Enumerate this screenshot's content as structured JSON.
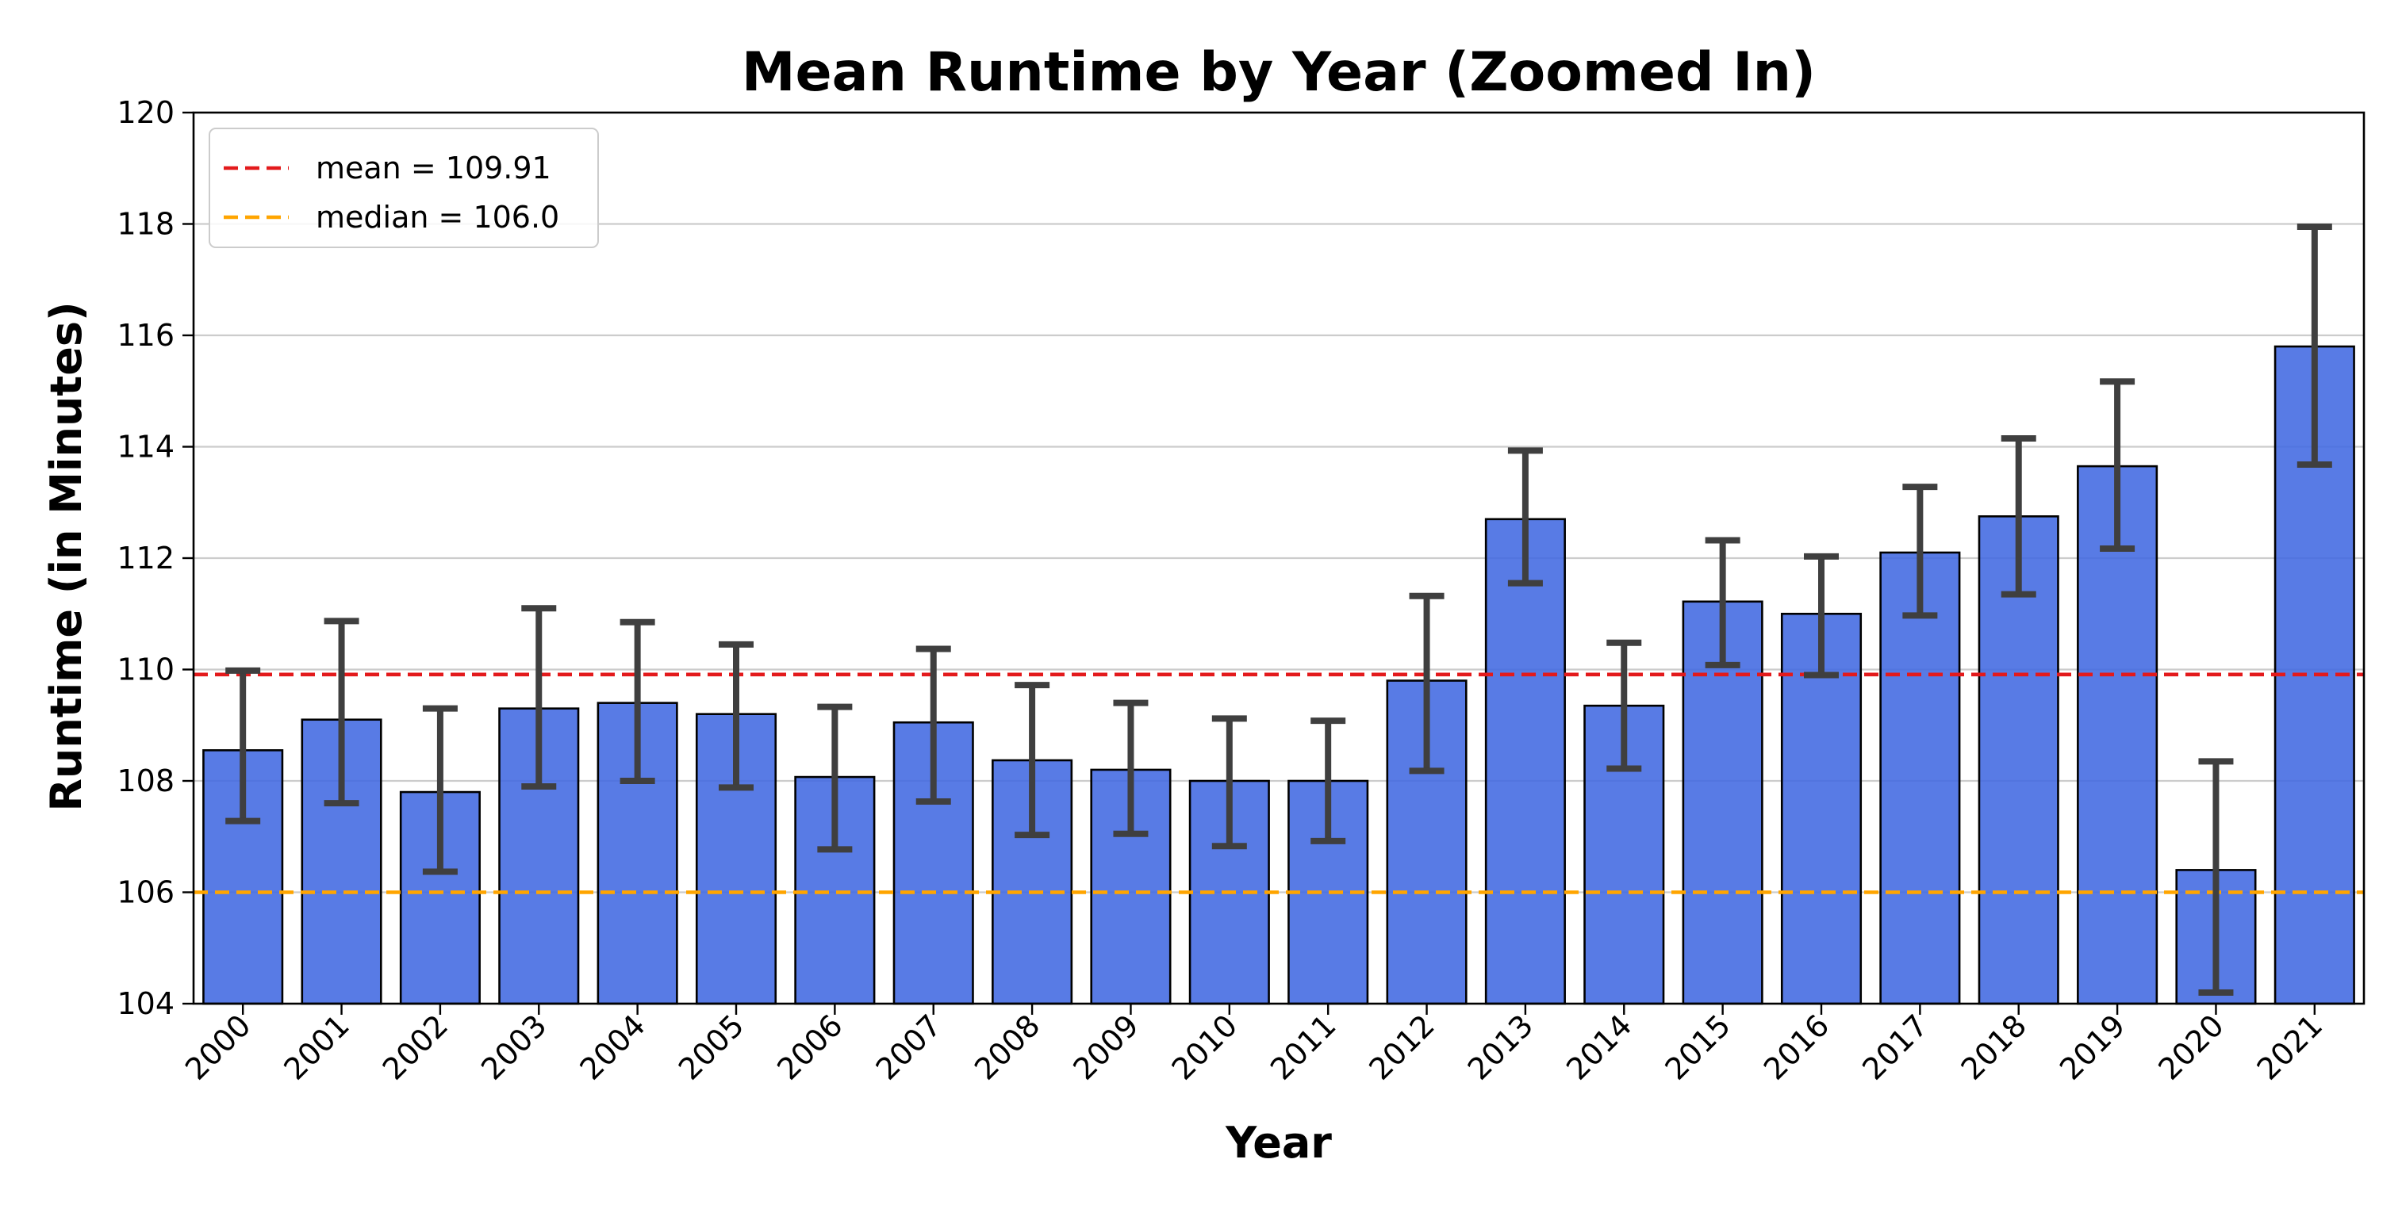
{
  "chart_data": {
    "type": "bar",
    "title": "Mean Runtime by Year (Zoomed In)",
    "xlabel": "Year",
    "ylabel": "Runtime (in Minutes)",
    "ylim": [
      104,
      120
    ],
    "yticks": [
      104,
      106,
      108,
      110,
      112,
      114,
      116,
      118,
      120
    ],
    "grid": "horizontal",
    "legend_position": "top-left",
    "categories": [
      "2000",
      "2001",
      "2002",
      "2003",
      "2004",
      "2005",
      "2006",
      "2007",
      "2008",
      "2009",
      "2010",
      "2011",
      "2012",
      "2013",
      "2014",
      "2015",
      "2016",
      "2017",
      "2018",
      "2019",
      "2020",
      "2021"
    ],
    "values": [
      108.55,
      109.1,
      107.8,
      109.3,
      109.4,
      109.2,
      108.07,
      109.05,
      108.37,
      108.2,
      108.0,
      108.0,
      109.8,
      112.7,
      109.35,
      111.22,
      111.0,
      112.1,
      112.75,
      113.65,
      106.4,
      115.8
    ],
    "error_low": [
      107.28,
      107.6,
      106.37,
      107.9,
      108.0,
      107.88,
      106.77,
      107.63,
      107.03,
      107.05,
      106.83,
      106.92,
      108.18,
      111.55,
      108.22,
      110.08,
      109.9,
      110.97,
      111.35,
      112.17,
      104.2,
      113.68
    ],
    "error_high": [
      109.98,
      110.87,
      109.3,
      111.1,
      110.85,
      110.45,
      109.33,
      110.37,
      109.72,
      109.4,
      109.12,
      109.08,
      111.32,
      113.93,
      110.48,
      112.32,
      112.03,
      113.28,
      114.15,
      115.17,
      108.35,
      117.95
    ],
    "reference_lines": [
      {
        "label": "mean = 109.91",
        "value": 109.91,
        "color": "#e31a1c"
      },
      {
        "label": "median = 106.0",
        "value": 106.0,
        "color": "#ffa500"
      }
    ],
    "bar_color": "#4169e1",
    "errorbar_color": "#3f3f3f"
  }
}
